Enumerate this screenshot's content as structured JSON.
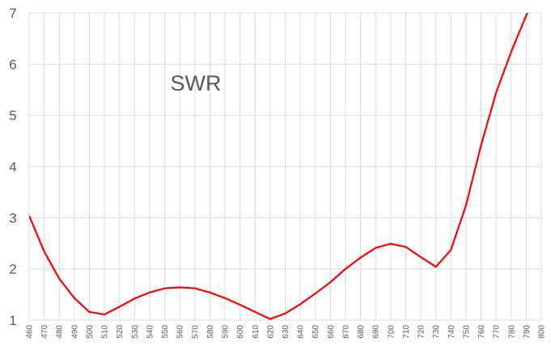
{
  "chart_data": {
    "type": "line",
    "title": "SWR",
    "xlabel": "",
    "ylabel": "",
    "categories": [
      460,
      470,
      480,
      490,
      500,
      510,
      520,
      530,
      540,
      550,
      560,
      570,
      580,
      590,
      600,
      610,
      620,
      630,
      640,
      650,
      660,
      670,
      680,
      690,
      700,
      710,
      720,
      730,
      740,
      750,
      760,
      770,
      780,
      790,
      800
    ],
    "series": [
      {
        "values": [
          3.04,
          2.34,
          1.81,
          1.43,
          1.16,
          1.11,
          1.26,
          1.42,
          1.54,
          1.62,
          1.64,
          1.62,
          1.54,
          1.43,
          1.3,
          1.16,
          1.02,
          1.13,
          1.31,
          1.52,
          1.74,
          2.0,
          2.22,
          2.41,
          2.49,
          2.43,
          2.23,
          2.04,
          2.37,
          3.24,
          4.41,
          5.44,
          6.24,
          6.95,
          7.6
        ],
        "color": "#ff0000"
      }
    ],
    "yticks": [
      1,
      2,
      3,
      4,
      5,
      6,
      7
    ],
    "ylim": [
      1,
      7
    ],
    "grid": true,
    "legend": "none"
  }
}
